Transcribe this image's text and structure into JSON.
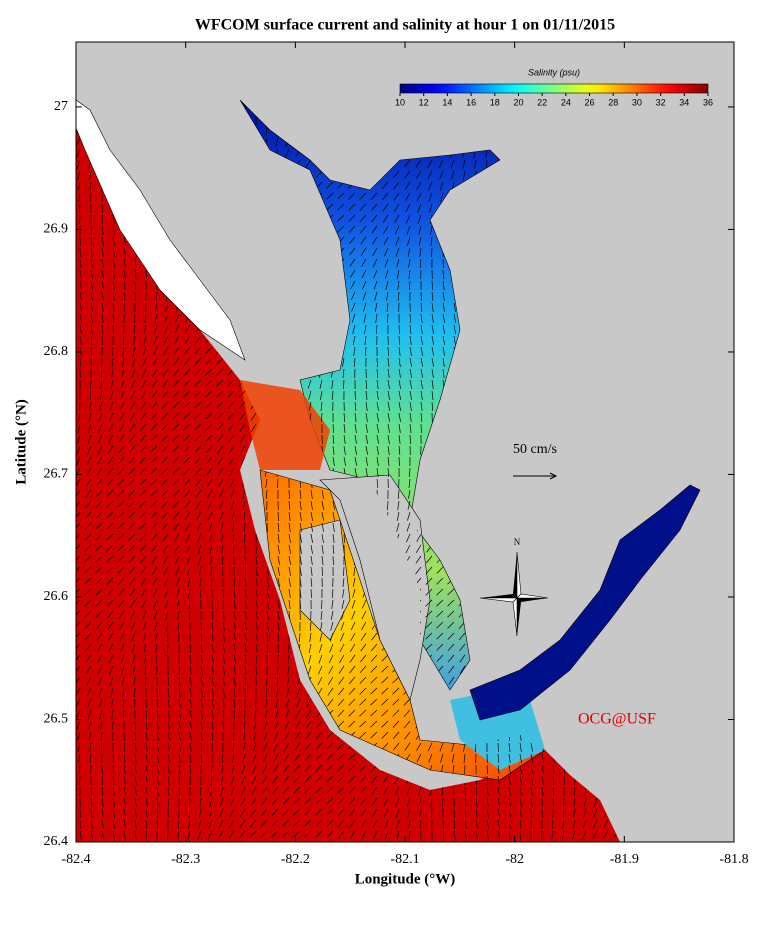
{
  "chart_data": {
    "type": "map",
    "title": "WFCOM surface current and salinity at hour 1 on 01/11/2015",
    "xlabel": "Longitude (°W)",
    "ylabel": "Latitude (°N)",
    "xlim": [
      -82.4,
      -81.8
    ],
    "xticks": [
      -82.4,
      -82.3,
      -82.2,
      -82.1,
      -82,
      -81.9,
      -81.8
    ],
    "ylim": [
      26.4,
      27.053
    ],
    "yticks": [
      26.4,
      26.5,
      26.6,
      26.7,
      26.8,
      26.9,
      27
    ],
    "colorbar": {
      "title": "Salinity (psu)",
      "range": [
        10,
        36
      ],
      "ticks": [
        10,
        12,
        14,
        16,
        18,
        20,
        22,
        24,
        26,
        28,
        30,
        32,
        34,
        36
      ]
    },
    "annotations": {
      "scale": "50 cm/s",
      "north": "N",
      "credit": "OCG@USF"
    }
  }
}
